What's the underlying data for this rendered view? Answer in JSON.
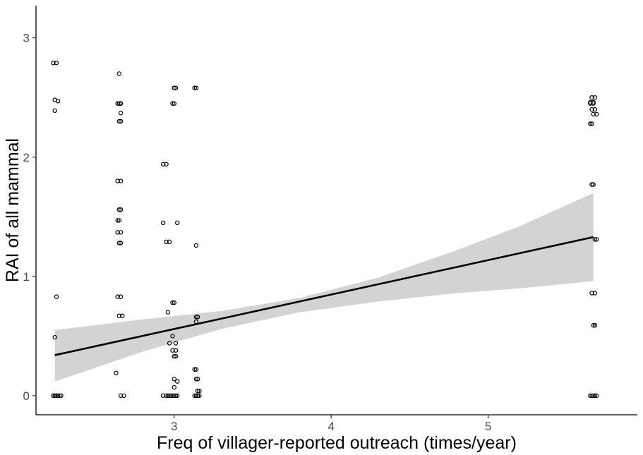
{
  "chart_data": {
    "type": "scatter",
    "title": "",
    "xlabel": "Freq of villager-reported outreach (times/year)",
    "ylabel": "RAI of all mammal",
    "xlim": [
      2.12,
      5.95
    ],
    "ylim": [
      -0.16,
      3.27
    ],
    "x_ticks": [
      3,
      4,
      5
    ],
    "y_ticks": [
      0,
      1,
      2,
      3
    ],
    "grid": false,
    "legend": "none",
    "colors": {
      "points": "#000000",
      "fit_line": "#000000",
      "confidence_band": "#d3d3d3",
      "axis": "#000000",
      "tick_label": "#4d4d4d"
    },
    "series": [
      {
        "kind": "points",
        "x": [
          2.23,
          2.25,
          2.24,
          2.26,
          2.24,
          2.25,
          2.24,
          2.25,
          2.23,
          2.24,
          2.26,
          2.27,
          2.28,
          2.25,
          2.24,
          2.65,
          2.66,
          2.64,
          2.66,
          2.65,
          2.66,
          2.65,
          2.66,
          2.64,
          2.66,
          2.65,
          2.66,
          2.64,
          2.65,
          2.64,
          2.66,
          2.65,
          2.66,
          2.64,
          2.66,
          2.65,
          2.67,
          2.63,
          2.66,
          2.68,
          2.93,
          2.95,
          2.96,
          3.0,
          3.01,
          2.99,
          3.0,
          3.02,
          2.93,
          2.95,
          2.97,
          2.99,
          3.0,
          2.99,
          3.01,
          2.97,
          2.99,
          3.01,
          3.0,
          3.01,
          3.0,
          3.02,
          3.0,
          2.93,
          2.95,
          2.97,
          2.98,
          3.0,
          3.02,
          3.01,
          2.99,
          3.0,
          2.96,
          3.13,
          3.14,
          3.14,
          3.15,
          3.14,
          3.14,
          3.14,
          3.13,
          3.15,
          3.14,
          3.16,
          3.15,
          3.13,
          3.15,
          3.16,
          3.14,
          3.15,
          3.14,
          5.66,
          5.68,
          5.65,
          5.67,
          5.65,
          5.67,
          5.66,
          5.68,
          5.69,
          5.67,
          5.66,
          5.65,
          5.66,
          5.67,
          5.68,
          5.69,
          5.66,
          5.68,
          5.67,
          5.68,
          5.65,
          5.66,
          5.67,
          5.68,
          5.69
        ],
        "y": [
          2.79,
          2.79,
          2.48,
          2.47,
          2.39,
          0.83,
          0.49,
          0,
          0,
          0,
          0,
          0,
          0,
          0,
          0,
          2.7,
          2.45,
          2.45,
          2.45,
          2.45,
          2.37,
          2.3,
          2.3,
          1.8,
          1.8,
          1.56,
          1.56,
          1.47,
          1.47,
          1.37,
          1.37,
          1.28,
          1.28,
          0.83,
          0.83,
          0.67,
          0.67,
          0.19,
          0,
          0,
          1.94,
          1.94,
          0.7,
          2.58,
          2.58,
          2.45,
          2.45,
          1.45,
          1.45,
          1.29,
          1.29,
          0.78,
          0.78,
          0.5,
          0.44,
          0.44,
          0.38,
          0.38,
          0.33,
          0.33,
          0.14,
          0.12,
          0.07,
          0,
          0,
          0,
          0,
          0,
          0,
          0,
          0,
          0,
          0,
          2.58,
          2.58,
          1.26,
          0.66,
          0.66,
          0.62,
          0.22,
          0.22,
          0.14,
          0.14,
          0.04,
          0.04,
          0,
          0,
          0,
          0,
          0,
          0,
          2.5,
          2.5,
          2.46,
          2.46,
          2.45,
          2.45,
          2.4,
          2.4,
          2.36,
          2.36,
          2.28,
          2.28,
          1.77,
          1.77,
          1.31,
          1.31,
          0.86,
          0.86,
          0.59,
          0.59,
          0,
          0,
          0,
          0,
          0
        ]
      },
      {
        "kind": "fit_line",
        "x": [
          2.24,
          5.67
        ],
        "y": [
          0.34,
          1.33
        ]
      },
      {
        "kind": "confidence_band",
        "x": [
          2.24,
          2.8,
          3.3,
          3.8,
          4.3,
          4.8,
          5.2,
          5.67
        ],
        "lower": [
          0.12,
          0.37,
          0.56,
          0.7,
          0.79,
          0.86,
          0.9,
          0.96
        ],
        "upper": [
          0.55,
          0.64,
          0.71,
          0.82,
          0.99,
          1.22,
          1.42,
          1.7
        ]
      }
    ]
  }
}
